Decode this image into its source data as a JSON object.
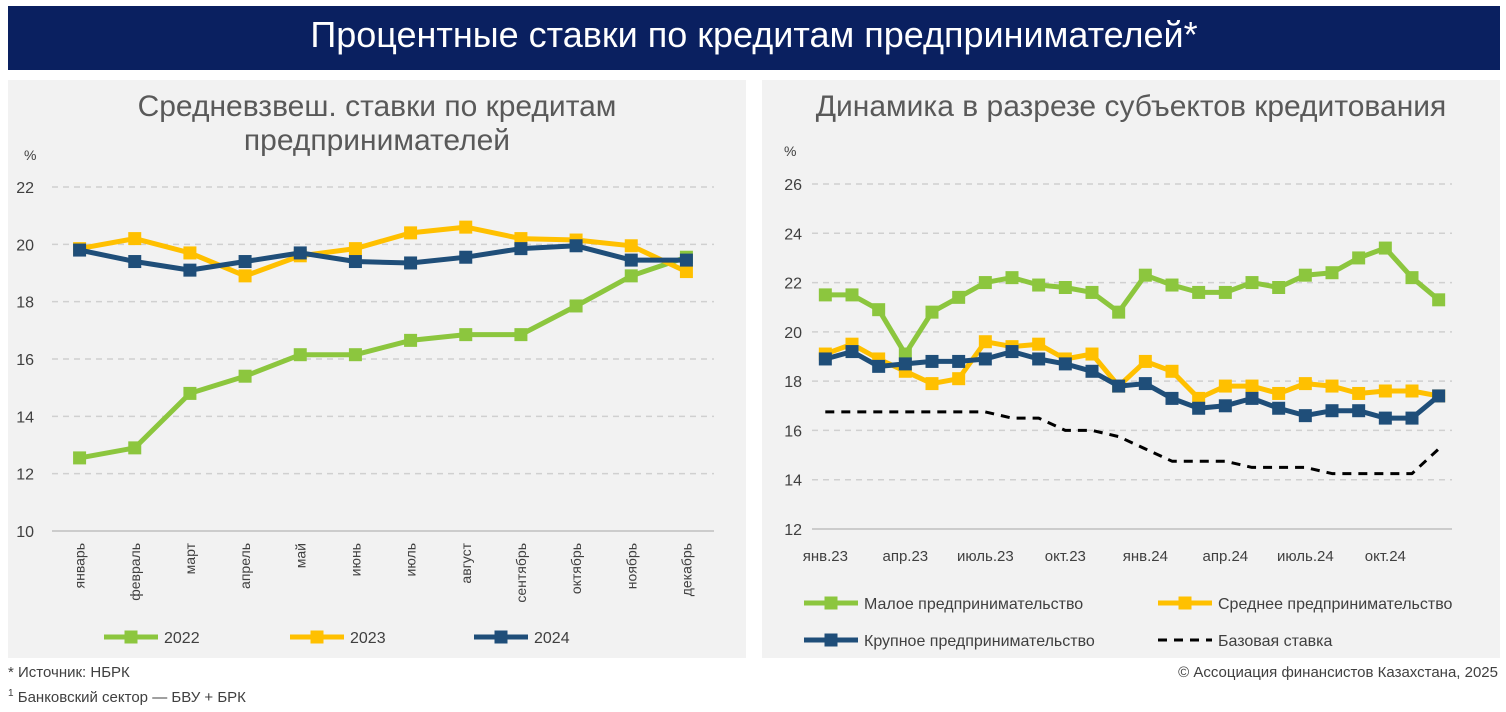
{
  "header": {
    "title": "Процентные ставки по кредитам предпринимателей*"
  },
  "left_chart": {
    "title": "Средневзвеш. ставки по кредитам предпринимателей"
  },
  "right_chart": {
    "title": "Динамика в разрезе субъектов кредитования"
  },
  "footer": {
    "source": "* Источник: НБРК",
    "note_mark": "1",
    "note": " Банковский сектор — БВУ + БРК",
    "copyright": "© Ассоциация финансистов Казахстана, 2025"
  },
  "chart_data": [
    {
      "type": "line",
      "title": "Средневзвеш. ставки по кредитам предпринимателей",
      "ylabel": "%",
      "ylim": [
        10,
        22
      ],
      "yticks": [
        10,
        12,
        14,
        16,
        18,
        20,
        22
      ],
      "grid": true,
      "legend": "bottom",
      "categories": [
        "январь",
        "февраль",
        "март",
        "апрель",
        "май",
        "июнь",
        "июль",
        "август",
        "сентябрь",
        "октябрь",
        "ноябрь",
        "декабрь"
      ],
      "series": [
        {
          "name": "2022",
          "color": "#8cc63e",
          "marker": "square",
          "values": [
            12.55,
            12.9,
            14.8,
            15.4,
            16.15,
            16.15,
            16.65,
            16.85,
            16.85,
            17.85,
            18.9,
            19.55
          ]
        },
        {
          "name": "2023",
          "color": "#ffc000",
          "marker": "square",
          "values": [
            19.85,
            20.2,
            19.7,
            18.9,
            19.6,
            19.85,
            20.4,
            20.6,
            20.2,
            20.15,
            19.95,
            19.05
          ]
        },
        {
          "name": "2024",
          "color": "#1f4e79",
          "marker": "square",
          "values": [
            19.8,
            19.4,
            19.1,
            19.4,
            19.7,
            19.4,
            19.35,
            19.55,
            19.85,
            19.95,
            19.45,
            19.45
          ]
        }
      ]
    },
    {
      "type": "line",
      "title": "Динамика в разрезе субъектов кредитования",
      "ylabel": "%",
      "ylim": [
        12,
        26
      ],
      "yticks": [
        12,
        14,
        16,
        18,
        20,
        22,
        24,
        26
      ],
      "grid": true,
      "legend": "bottom",
      "x_tick_labels": [
        "янв.23",
        "апр.23",
        "июль.23",
        "окт.23",
        "янв.24",
        "апр.24",
        "июль.24",
        "окт.24"
      ],
      "x_tick_indices": [
        0,
        3,
        6,
        9,
        12,
        15,
        18,
        21
      ],
      "series": [
        {
          "name": "Малое предпринимательство",
          "color": "#8cc63e",
          "marker": "square",
          "style": "solid",
          "values": [
            21.5,
            21.5,
            20.9,
            19.1,
            20.8,
            21.4,
            22.0,
            22.2,
            21.9,
            21.8,
            21.6,
            20.8,
            22.3,
            21.9,
            21.6,
            21.6,
            22.0,
            21.8,
            22.3,
            22.4,
            23.0,
            23.4,
            22.2,
            21.3
          ]
        },
        {
          "name": "Среднее предпринимательство",
          "color": "#ffc000",
          "marker": "square",
          "style": "solid",
          "values": [
            19.1,
            19.5,
            18.9,
            18.4,
            17.9,
            18.1,
            19.6,
            19.4,
            19.5,
            18.9,
            19.1,
            17.8,
            18.8,
            18.4,
            17.3,
            17.8,
            17.8,
            17.5,
            17.9,
            17.8,
            17.5,
            17.6,
            17.6,
            17.4
          ]
        },
        {
          "name": "Крупное предпринимательство",
          "color": "#1f4e79",
          "marker": "square",
          "style": "solid",
          "values": [
            18.9,
            19.2,
            18.6,
            18.7,
            18.8,
            18.8,
            18.9,
            19.2,
            18.9,
            18.7,
            18.4,
            17.8,
            17.9,
            17.3,
            16.9,
            17.0,
            17.3,
            16.9,
            16.6,
            16.8,
            16.8,
            16.5,
            16.5,
            17.4
          ]
        },
        {
          "name": "Базовая ставка",
          "color": "#000000",
          "marker": "none",
          "style": "dashed",
          "values": [
            16.75,
            16.75,
            16.75,
            16.75,
            16.75,
            16.75,
            16.75,
            16.5,
            16.5,
            16.0,
            16.0,
            15.75,
            15.25,
            14.75,
            14.75,
            14.75,
            14.5,
            14.5,
            14.5,
            14.25,
            14.25,
            14.25,
            14.25,
            15.25
          ]
        }
      ]
    }
  ]
}
